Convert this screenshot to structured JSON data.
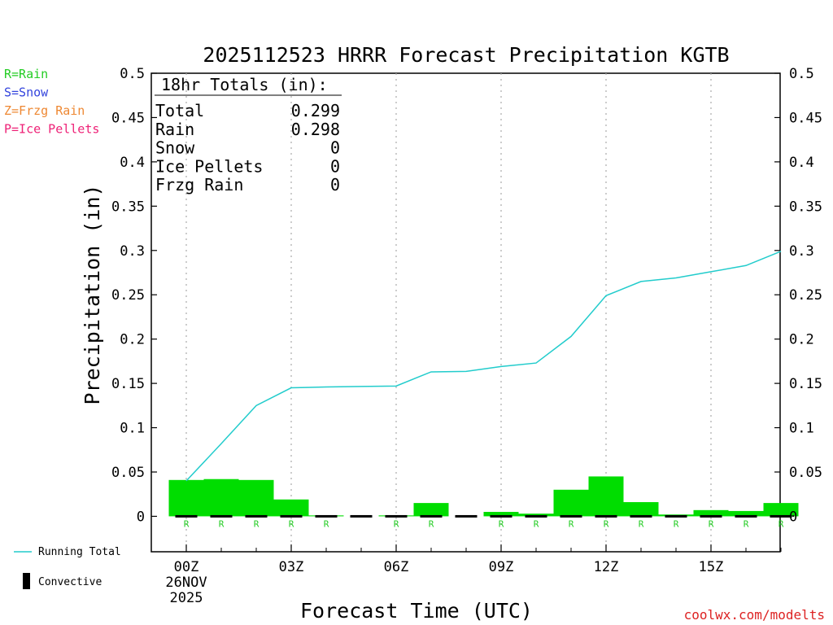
{
  "title": "2025112523 HRRR Forecast Precipitation KGTB",
  "xlabel": "Forecast Time (UTC)",
  "ylabel": "Precipitation (in)",
  "credit": "coolwx.com/modelts",
  "precip_legend": [
    {
      "text": "R=Rain",
      "color": "#22cc22"
    },
    {
      "text": "S=Snow",
      "color": "#3344dd"
    },
    {
      "text": "Z=Frzg Rain",
      "color": "#ee8833"
    },
    {
      "text": "P=Ice Pellets",
      "color": "#ee2277"
    }
  ],
  "series_legend": {
    "running_total": {
      "label": "Running Total",
      "color": "#22cccc"
    },
    "convective": {
      "label": "Convective",
      "color": "#000000"
    }
  },
  "totals_box": {
    "heading": "18hr Totals (in):",
    "rows": [
      {
        "label": "Total",
        "value": "0.299"
      },
      {
        "label": "Rain",
        "value": "0.298"
      },
      {
        "label": "Snow",
        "value": "0"
      },
      {
        "label": "Ice Pellets",
        "value": "0"
      },
      {
        "label": "Frzg Rain",
        "value": "0"
      }
    ]
  },
  "chart_data": {
    "type": "bar",
    "ylim": [
      -0.04,
      0.5
    ],
    "yticks": [
      "0",
      "0.05",
      "0.1",
      "0.15",
      "0.2",
      "0.25",
      "0.3",
      "0.35",
      "0.4",
      "0.45",
      "0.5"
    ],
    "ytick_values": [
      0,
      0.05,
      0.1,
      0.15,
      0.2,
      0.25,
      0.3,
      0.35,
      0.4,
      0.45,
      0.5
    ],
    "xticks": [
      {
        "hour": 0,
        "label": "00Z",
        "sub": [
          "26NOV",
          "2025"
        ]
      },
      {
        "hour": 3,
        "label": "03Z"
      },
      {
        "hour": 6,
        "label": "06Z"
      },
      {
        "hour": 9,
        "label": "09Z"
      },
      {
        "hour": 12,
        "label": "12Z"
      },
      {
        "hour": 15,
        "label": "15Z"
      }
    ],
    "forecast_hours": [
      0,
      1,
      2,
      3,
      4,
      5,
      6,
      7,
      8,
      9,
      10,
      11,
      12,
      13,
      14,
      15,
      16,
      17
    ],
    "hourly_precip": [
      0.041,
      0.042,
      0.041,
      0.019,
      0.001,
      0.0,
      0.001,
      0.015,
      0.0,
      0.005,
      0.003,
      0.03,
      0.045,
      0.016,
      0.002,
      0.007,
      0.006,
      0.015
    ],
    "running_total": [
      0.04,
      0.082,
      0.125,
      0.145,
      0.146,
      0.1465,
      0.147,
      0.163,
      0.1635,
      0.169,
      0.173,
      0.203,
      0.249,
      0.265,
      0.269,
      0.276,
      0.283,
      0.299
    ],
    "precip_type_marks": [
      {
        "hour": 0,
        "text": "R"
      },
      {
        "hour": 1,
        "text": "R"
      },
      {
        "hour": 2,
        "text": "R"
      },
      {
        "hour": 3,
        "text": "R"
      },
      {
        "hour": 4,
        "text": "R"
      },
      {
        "hour": 6,
        "text": "R"
      },
      {
        "hour": 7,
        "text": "R"
      },
      {
        "hour": 9,
        "text": "R"
      },
      {
        "hour": 10,
        "text": "R"
      },
      {
        "hour": 11,
        "text": "R"
      },
      {
        "hour": 12,
        "text": "R"
      },
      {
        "hour": 13,
        "text": "R"
      },
      {
        "hour": 14,
        "text": "R"
      },
      {
        "hour": 15,
        "text": "R"
      },
      {
        "hour": 16,
        "text": "R"
      },
      {
        "hour": 17,
        "text": "R"
      }
    ],
    "bar_color": "#00dd00",
    "line_color": "#22cccc",
    "grid": true
  }
}
